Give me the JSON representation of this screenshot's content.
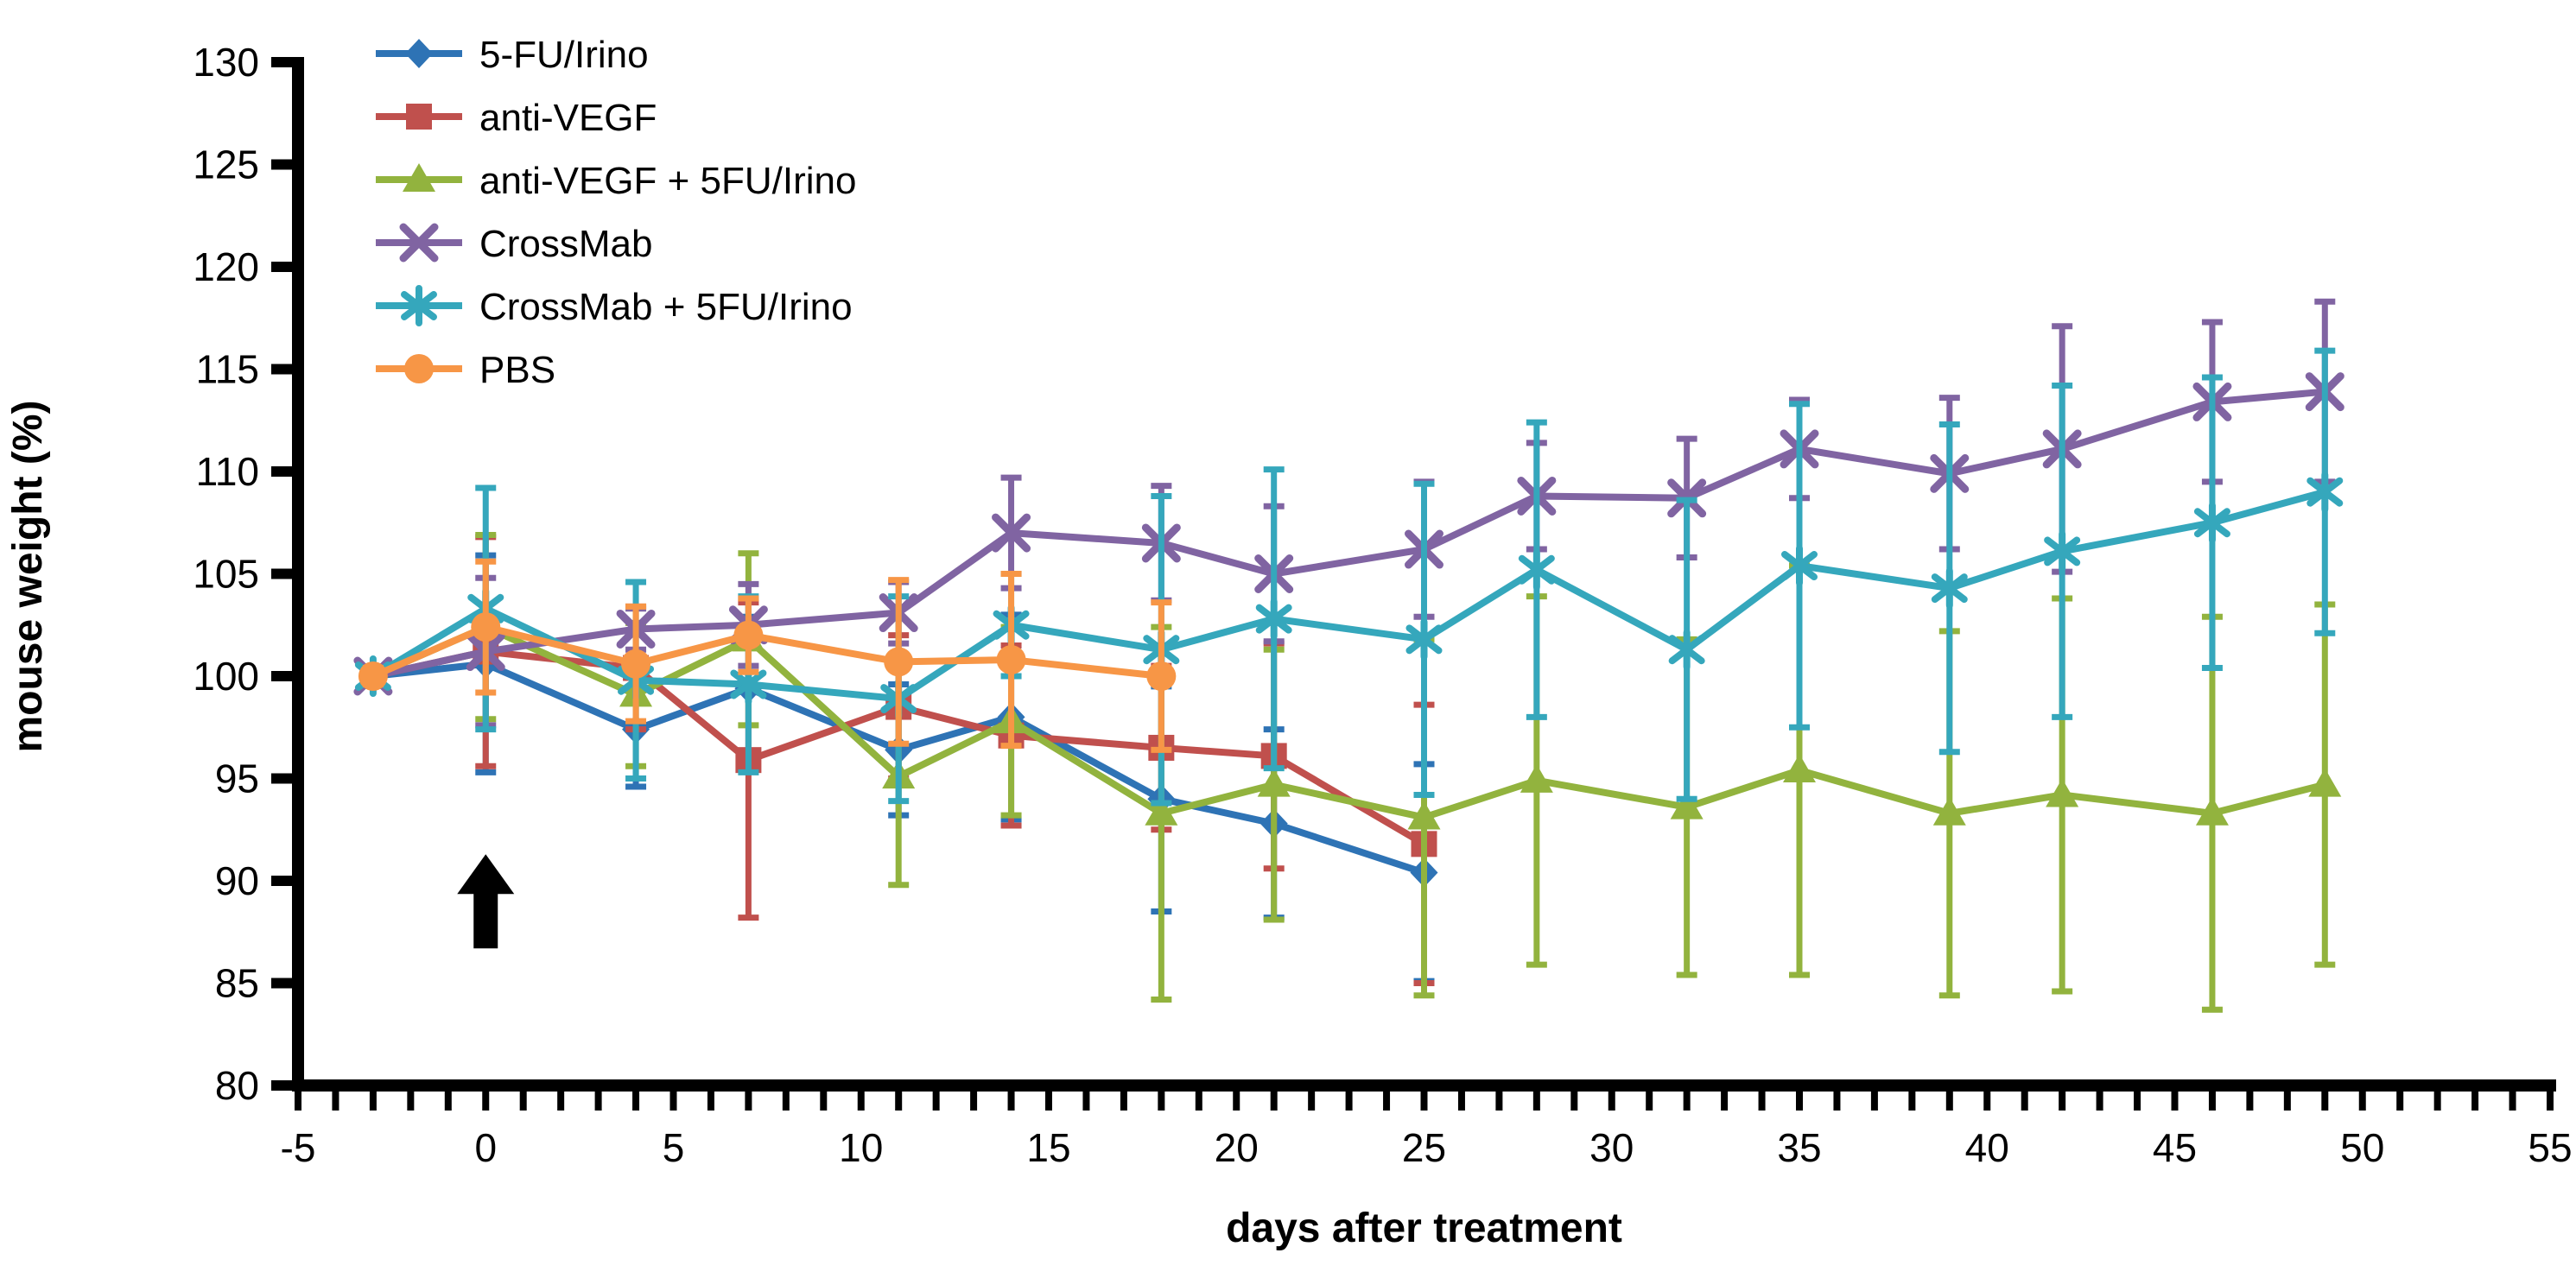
{
  "chart_data": {
    "type": "line",
    "title": "",
    "xlabel": "days after treatment",
    "ylabel": "mouse weight (%)",
    "xlim": [
      -5,
      55
    ],
    "ylim": [
      80,
      130
    ],
    "xticks": [
      -5,
      0,
      5,
      10,
      15,
      20,
      25,
      30,
      35,
      40,
      45,
      50,
      55
    ],
    "yticks": [
      80,
      85,
      90,
      95,
      100,
      105,
      110,
      115,
      120,
      125,
      130
    ],
    "minor_xtick_step": 1,
    "grid": "off",
    "legend_position": "top-left-inside",
    "x": [
      -3,
      0,
      4,
      7,
      11,
      14,
      18,
      21,
      25,
      28,
      32,
      35,
      39,
      42,
      46,
      49
    ],
    "series": [
      {
        "name": "5-FU/Irino",
        "color": "#2E73B5",
        "marker": "diamond",
        "values": [
          100,
          100.6,
          97.4,
          99.4,
          96.4,
          98.0,
          94.0,
          92.8,
          90.4
        ],
        "errors": [
          0.4,
          5.3,
          2.8,
          3.5,
          3.2,
          5.0,
          5.5,
          4.6,
          5.3
        ]
      },
      {
        "name": "anti-VEGF",
        "color": "#C0504D",
        "marker": "square",
        "values": [
          100,
          101.2,
          100.4,
          95.9,
          98.5,
          97.1,
          96.5,
          96.1,
          91.8
        ],
        "errors": [
          0.4,
          5.6,
          3.0,
          7.7,
          3.5,
          4.4,
          4.0,
          5.5,
          6.8
        ]
      },
      {
        "name": "anti-VEGF + 5FU/Irino",
        "color": "#92B33E",
        "marker": "triangle",
        "values": [
          100,
          102.4,
          99.1,
          101.8,
          95.1,
          97.8,
          93.3,
          94.7,
          93.1,
          94.9,
          93.6,
          95.4,
          93.3,
          94.2,
          93.3,
          94.7
        ],
        "errors": [
          0.4,
          4.5,
          3.5,
          4.2,
          5.3,
          4.6,
          9.1,
          6.6,
          8.7,
          9.0,
          8.2,
          10.0,
          8.9,
          9.6,
          9.6,
          8.8
        ]
      },
      {
        "name": "CrossMab",
        "color": "#8064A2",
        "marker": "x",
        "values": [
          100,
          101.2,
          102.3,
          102.5,
          103.1,
          107.0,
          106.5,
          105.0,
          106.2,
          108.8,
          108.7,
          111.1,
          109.9,
          111.1,
          113.4,
          113.9
        ],
        "errors": [
          0.4,
          3.6,
          1.0,
          2.0,
          1.5,
          2.7,
          2.8,
          3.3,
          3.3,
          2.6,
          2.9,
          2.4,
          3.7,
          6.0,
          3.9,
          4.4
        ]
      },
      {
        "name": "CrossMab + 5FU/Irino",
        "color": "#35A7BC",
        "marker": "asterisk",
        "values": [
          100,
          103.3,
          99.8,
          99.6,
          98.9,
          102.5,
          101.3,
          102.8,
          101.8,
          105.2,
          101.3,
          105.4,
          104.3,
          106.1,
          107.5,
          109.0
        ],
        "errors": [
          0.4,
          5.9,
          4.8,
          4.3,
          5.0,
          2.5,
          7.5,
          7.3,
          7.6,
          7.2,
          7.3,
          7.9,
          8.0,
          8.1,
          7.1,
          6.9
        ]
      },
      {
        "name": "PBS",
        "color": "#F79646",
        "marker": "circle",
        "values": [
          100,
          102.4,
          100.6,
          102.0,
          100.7,
          100.8,
          100.0
        ],
        "errors": [
          0.4,
          3.2,
          2.8,
          1.8,
          4.0,
          4.2,
          3.6
        ]
      }
    ],
    "annotation": {
      "type": "up-arrow",
      "meaning": "treatment-start-marker",
      "x": 0,
      "y_base": 86.7,
      "y_tip": 91.3,
      "color": "#000000"
    }
  }
}
